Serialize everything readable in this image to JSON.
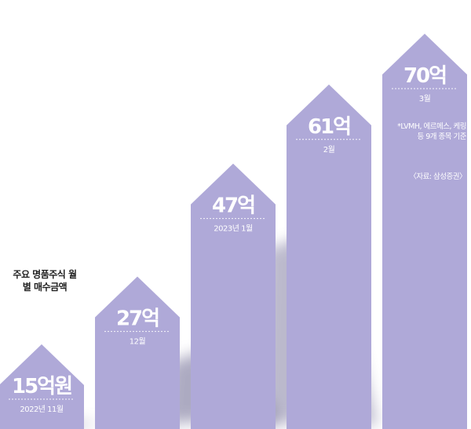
{
  "chart_data": {
    "type": "bar",
    "title": "주요 명품주식 월별 매수금액",
    "categories": [
      "2022년 11월",
      "12월",
      "2023년 1월",
      "2월",
      "3월"
    ],
    "values": [
      15,
      27,
      47,
      61,
      70
    ],
    "value_labels": [
      "15억원",
      "27억",
      "47억",
      "61억",
      "70억"
    ],
    "unit": "억원",
    "ylim": [
      0,
      75
    ],
    "grid": false,
    "legend": "none",
    "colors": {
      "bar": "#afa9d8",
      "shadow": "#6a6690",
      "label": "#ffffff",
      "divider": "#ffffff"
    },
    "annotations": {
      "note": "*LVMH, 에르메스, 케링 등 9개 종목 기준",
      "source": "〈자료: 삼성증권〉"
    }
  }
}
